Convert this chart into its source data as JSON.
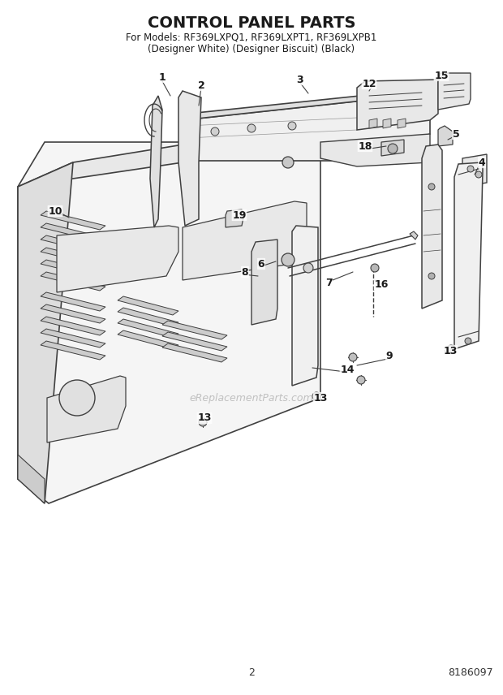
{
  "title_line1": "CONTROL PANEL PARTS",
  "title_line2": "For Models: RF369LXPQ1, RF369LXPT1, RF369LXPB1",
  "title_line3": "(Designer White) (Designer Biscuit) (Black)",
  "watermark": "eReplacementParts.com",
  "page_number": "2",
  "part_number": "8186097",
  "background_color": "#ffffff",
  "line_color": "#404040",
  "label_color": "#1a1a1a",
  "watermark_color": "#bbbbbb",
  "fig_width": 6.2,
  "fig_height": 8.56,
  "dpi": 100
}
